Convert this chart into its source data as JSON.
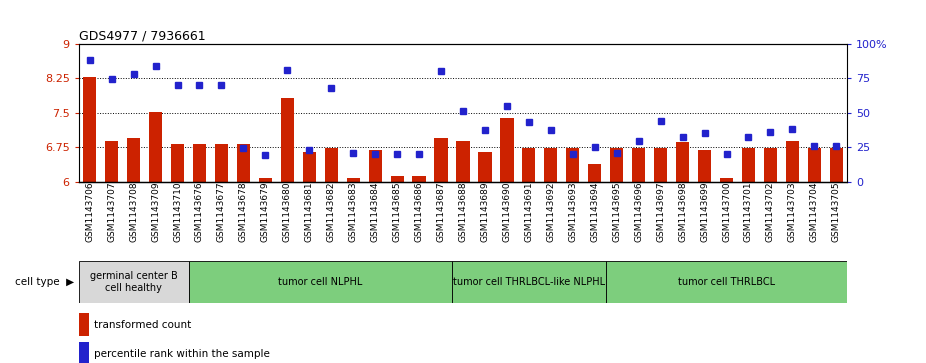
{
  "title": "GDS4977 / 7936661",
  "samples": [
    "GSM1143706",
    "GSM1143707",
    "GSM1143708",
    "GSM1143709",
    "GSM1143710",
    "GSM1143676",
    "GSM1143677",
    "GSM1143678",
    "GSM1143679",
    "GSM1143680",
    "GSM1143681",
    "GSM1143682",
    "GSM1143683",
    "GSM1143684",
    "GSM1143685",
    "GSM1143686",
    "GSM1143687",
    "GSM1143688",
    "GSM1143689",
    "GSM1143690",
    "GSM1143691",
    "GSM1143692",
    "GSM1143693",
    "GSM1143694",
    "GSM1143695",
    "GSM1143696",
    "GSM1143697",
    "GSM1143698",
    "GSM1143699",
    "GSM1143700",
    "GSM1143701",
    "GSM1143702",
    "GSM1143703",
    "GSM1143704",
    "GSM1143705"
  ],
  "bar_values": [
    8.28,
    6.88,
    6.95,
    7.52,
    6.82,
    6.82,
    6.82,
    6.82,
    6.08,
    7.82,
    6.65,
    6.72,
    6.08,
    6.68,
    6.12,
    6.12,
    6.95,
    6.88,
    6.65,
    7.38,
    6.72,
    6.72,
    6.72,
    6.38,
    6.72,
    6.72,
    6.72,
    6.85,
    6.68,
    6.08,
    6.72,
    6.72,
    6.88,
    6.72,
    6.72
  ],
  "percentile_values": [
    88,
    74,
    78,
    84,
    70,
    70,
    70,
    24,
    19,
    81,
    23,
    68,
    21,
    20,
    20,
    20,
    80,
    51,
    37,
    55,
    43,
    37,
    20,
    25,
    21,
    29,
    44,
    32,
    35,
    20,
    32,
    36,
    38,
    26,
    26
  ],
  "groups": [
    {
      "label": "germinal center B\ncell healthy",
      "start": 0,
      "end": 4,
      "color": "#d8d8d8"
    },
    {
      "label": "tumor cell NLPHL",
      "start": 5,
      "end": 16,
      "color": "#7dce7d"
    },
    {
      "label": "tumor cell THRLBCL-like NLPHL",
      "start": 17,
      "end": 23,
      "color": "#7dce7d"
    },
    {
      "label": "tumor cell THRLBCL",
      "start": 24,
      "end": 34,
      "color": "#7dce7d"
    }
  ],
  "ylim_left": [
    6,
    9
  ],
  "ylim_right": [
    0,
    100
  ],
  "yticks_left": [
    6,
    6.75,
    7.5,
    8.25,
    9
  ],
  "yticks_right": [
    0,
    25,
    50,
    75,
    100
  ],
  "hlines": [
    8.25,
    7.5,
    6.75
  ],
  "bar_color": "#CC2200",
  "dot_color": "#2222CC",
  "bar_width": 0.6,
  "background_color": "#ffffff"
}
